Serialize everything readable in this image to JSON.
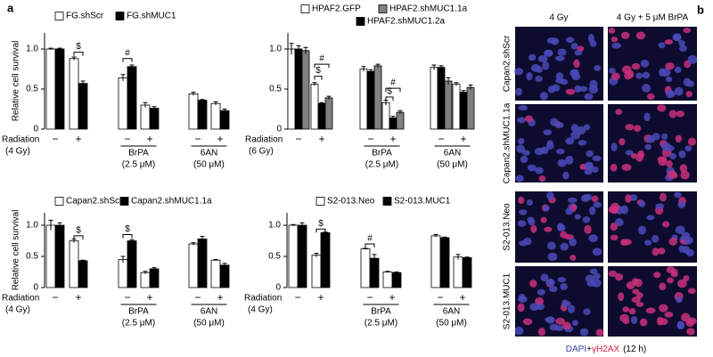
{
  "panel_labels": [
    "a",
    "b"
  ],
  "chart_data": [
    {
      "type": "bar",
      "ylabel": "Relative cell survival",
      "categories": [
        "−",
        "+",
        "−",
        "+",
        "−",
        "+"
      ],
      "row_label": "Radiation",
      "row_note": "(4 Gy)",
      "treatments": [
        {
          "name": "BrPA",
          "dose": "(2.5 μM)"
        },
        {
          "name": "6AN",
          "dose": "(50 μM)"
        }
      ],
      "series": [
        {
          "name": "FG.shScr",
          "color": "#ffffff",
          "values": [
            1.0,
            0.88,
            0.64,
            0.3,
            0.44,
            0.32
          ],
          "errors": [
            0.01,
            0.02,
            0.04,
            0.03,
            0.02,
            0.02
          ]
        },
        {
          "name": "FG.shMUC1",
          "color": "#000000",
          "values": [
            1.0,
            0.57,
            0.78,
            0.26,
            0.36,
            0.23
          ],
          "errors": [
            0.01,
            0.03,
            0.02,
            0.02,
            0.01,
            0.02
          ]
        }
      ],
      "annotations": [
        "$",
        "#"
      ],
      "ylim": [
        0,
        1.2
      ],
      "yticks": [
        0,
        0.5,
        {
          "value": 1,
          "label": "1.0"
        }
      ]
    },
    {
      "type": "bar",
      "categories": [
        "−",
        "+",
        "−",
        "+",
        "−",
        "+"
      ],
      "row_label": "Radiation",
      "row_note": "(6 Gy)",
      "treatments": [
        {
          "name": "BrPA",
          "dose": "(2.5 μM)"
        },
        {
          "name": "6AN",
          "dose": "(50 μM)"
        }
      ],
      "series": [
        {
          "name": "HPAF2.GFP",
          "color": "#ffffff",
          "values": [
            1.0,
            0.56,
            0.75,
            0.33,
            0.77,
            0.56
          ],
          "errors": [
            0.07,
            0.02,
            0.03,
            0.03,
            0.03,
            0.02
          ]
        },
        {
          "name": "HPAF2.shMUC1.2a",
          "color": "#000000",
          "values": [
            1.0,
            0.32,
            0.72,
            0.14,
            0.77,
            0.46
          ],
          "errors": [
            0.04,
            0.01,
            0.02,
            0.02,
            0.02,
            0.02
          ]
        },
        {
          "name": "HPAF2.shMUC1.1a",
          "color": "#808080",
          "values": [
            0.98,
            0.39,
            0.79,
            0.21,
            0.6,
            0.52
          ],
          "errors": [
            0.04,
            0.02,
            0.02,
            0.02,
            0.04,
            0.03
          ]
        }
      ],
      "annotations": [
        "#",
        "$",
        "#",
        "$"
      ],
      "ylim": [
        0,
        1.2
      ],
      "yticks": [
        0,
        0.5,
        {
          "value": 1,
          "label": "1.0"
        }
      ]
    },
    {
      "type": "bar",
      "ylabel": "Relative cell survival",
      "categories": [
        "−",
        "+",
        "−",
        "+",
        "−",
        "+"
      ],
      "row_label": "Radiation",
      "row_note": "(4 Gy)",
      "treatments": [
        {
          "name": "BrPA",
          "dose": "(2.5 μM)"
        },
        {
          "name": "6AN",
          "dose": "(50 μM)"
        }
      ],
      "series": [
        {
          "name": "Capan2.shScr",
          "color": "#ffffff",
          "values": [
            1.0,
            0.75,
            0.45,
            0.24,
            0.7,
            0.44
          ],
          "errors": [
            0.08,
            0.03,
            0.05,
            0.02,
            0.02,
            0.01
          ]
        },
        {
          "name": "Capan2.shMUC1.1a",
          "color": "#000000",
          "values": [
            1.0,
            0.43,
            0.75,
            0.3,
            0.78,
            0.36
          ],
          "errors": [
            0.04,
            0.01,
            0.02,
            0.02,
            0.04,
            0.03
          ]
        }
      ],
      "annotations": [
        "$",
        "$"
      ],
      "ylim": [
        0,
        1.2
      ],
      "yticks": [
        0,
        0.5,
        {
          "value": 1,
          "label": "1.0"
        }
      ]
    },
    {
      "type": "bar",
      "categories": [
        "−",
        "+",
        "−",
        "+",
        "−",
        "+"
      ],
      "row_label": "Radiation",
      "row_note": "(4 Gy)",
      "treatments": [
        {
          "name": "BrPA",
          "dose": "(2.5 μM)"
        },
        {
          "name": "6AN",
          "dose": "(50 μM)"
        }
      ],
      "series": [
        {
          "name": "S2-013.Neo",
          "color": "#ffffff",
          "values": [
            1.0,
            0.52,
            0.62,
            0.25,
            0.83,
            0.49
          ],
          "errors": [
            0.01,
            0.03,
            0.01,
            0.01,
            0.02,
            0.04
          ]
        },
        {
          "name": "S2-013.MUC1",
          "color": "#000000",
          "values": [
            1.0,
            0.88,
            0.47,
            0.24,
            0.8,
            0.48
          ],
          "errors": [
            0.04,
            0.01,
            0.06,
            0.01,
            0.01,
            0.01
          ]
        }
      ],
      "annotations": [
        "$",
        "#"
      ],
      "ylim": [
        0,
        1.2
      ],
      "yticks": [
        0,
        0.5,
        {
          "value": 1,
          "label": "1.0"
        }
      ]
    }
  ],
  "panel_b": {
    "columns": [
      "4 Gy",
      "4 Gy + 5 μM BrPA"
    ],
    "rows": [
      "Capan2.shScr",
      "Capan2.shMUC1.1a",
      "S2-013.Neo",
      "S2-013.MUC1"
    ],
    "caption": {
      "stain1": "DAPI",
      "joiner": "+",
      "stain2": "γH2AX",
      "time": "(12 h)"
    }
  }
}
